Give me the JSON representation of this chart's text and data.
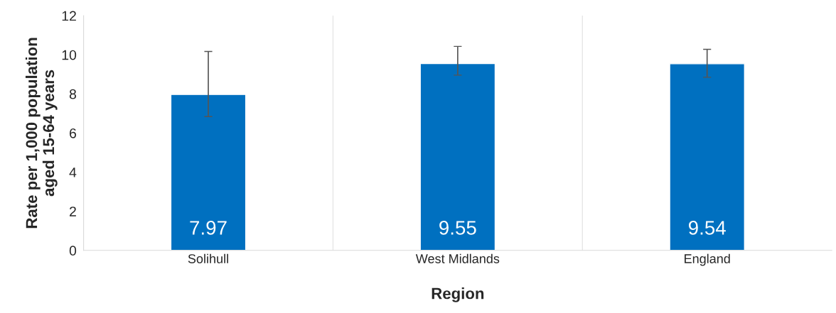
{
  "chart_data": {
    "type": "bar",
    "xlabel": "Region",
    "ylabel": "Rate per 1,000 population\naged 15-64 years",
    "categories": [
      "Solihull",
      "West Midlands",
      "England"
    ],
    "values": [
      7.97,
      9.55,
      9.54
    ],
    "errors": [
      [
        6.84,
        10.17
      ],
      [
        8.96,
        10.43
      ],
      [
        8.85,
        10.28
      ]
    ],
    "color": "#0070c0",
    "data_labels": true,
    "grid": false,
    "legend": false,
    "ylim": [
      0,
      12
    ],
    "yticks": [
      0,
      2,
      4,
      6,
      8,
      10,
      12
    ]
  }
}
